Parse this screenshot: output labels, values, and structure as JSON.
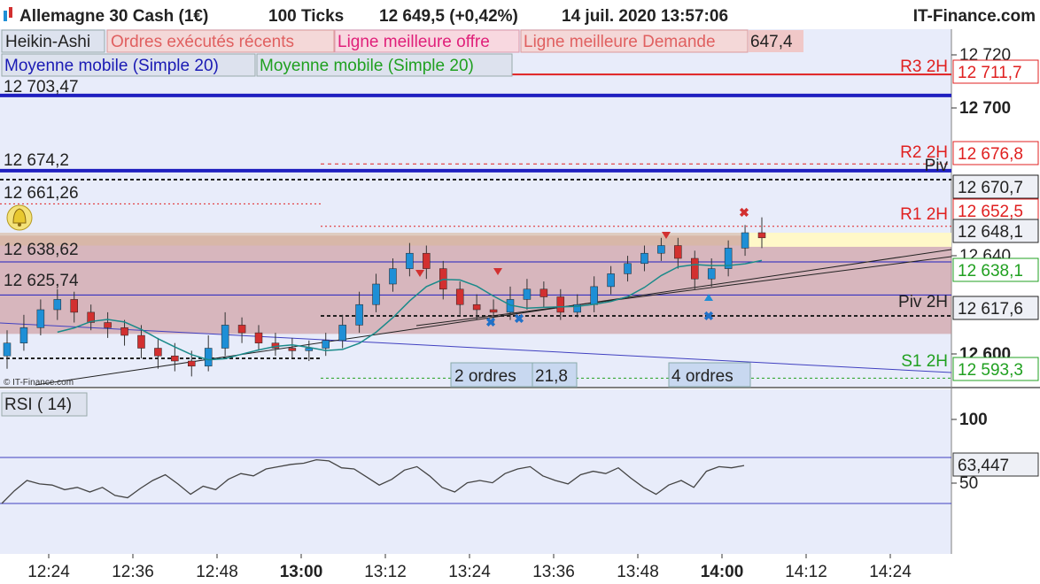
{
  "header": {
    "instrument": "Allemagne 30 Cash (1€)",
    "ticks": "100 Ticks",
    "price": "12 649,5 (+0,42%)",
    "datetime": "14 juil. 2020 13:57:06",
    "brand": "IT-Finance.com"
  },
  "legend": {
    "heikin": "Heikin-Ashi",
    "ordres": "Ordres exécutés récents",
    "offre": "Ligne meilleure offre",
    "demande": "Ligne meilleure Demande",
    "demande_value": "647,4",
    "ma1": "Moyenne mobile (Simple 20)",
    "ma2": "Moyenne mobile (Simple 20)"
  },
  "watermark": "© IT-Finance.com",
  "levels": {
    "r3": "R3 2H",
    "r2": "R2 2H",
    "r1": "R1 2H",
    "piv": "Piv 2H",
    "s1": "S1 2H",
    "piv_top": "Piv"
  },
  "left_labels": [
    "12 703,47",
    "12 674,2",
    "12 661,26",
    "12 638,62",
    "12 625,74"
  ],
  "order_boxes": {
    "box1": "2 ordres",
    "box1_tail": "21,8",
    "box2": "4 ordres"
  },
  "rsi_label": "RSI ( 14)",
  "rsi_value": "63,447",
  "colors": {
    "bull": "#1e8fd6",
    "bear": "#d23030",
    "ma_blue": "#1a1ab4",
    "ma_teal": "#1a8a8a",
    "red_line": "#e02020",
    "panel_bg": "#e8ecfa",
    "band": "#c98a8a",
    "yellow": "#fff8c8"
  },
  "chart_data": {
    "type": "candlestick",
    "instrument": "Allemagne 30 Cash (1€)",
    "x_ticks": [
      "12:24",
      "12:36",
      "12:48",
      "13:00",
      "13:12",
      "13:24",
      "13:36",
      "13:48",
      "14:00",
      "14:12",
      "14:24"
    ],
    "y_ticks": [
      "12 720",
      "12 700",
      "12 640",
      "12 600"
    ],
    "y_range": [
      12583,
      12733
    ],
    "price_tags": [
      {
        "text": "12 711,7",
        "color": "red"
      },
      {
        "text": "12 676,8",
        "color": "red"
      },
      {
        "text": "12 670,7",
        "color": "black"
      },
      {
        "text": "12 652,5",
        "color": "red"
      },
      {
        "text": "12 648,1",
        "color": "black"
      },
      {
        "text": "12 638,1",
        "color": "green"
      },
      {
        "text": "12 617,6",
        "color": "black"
      },
      {
        "text": "12 593,3",
        "color": "green"
      }
    ],
    "pivot_levels": [
      {
        "name": "R3 2H",
        "value": 12711.7
      },
      {
        "name": "R2 2H",
        "value": 12676.8
      },
      {
        "name": "R1 2H",
        "value": 12652.5
      },
      {
        "name": "Piv 2H",
        "value": 12617.6
      },
      {
        "name": "S1 2H",
        "value": 12593.3
      }
    ],
    "horizontal_lines": [
      12703.47,
      12674.2,
      12661.26,
      12638.62,
      12625.74
    ],
    "candles": [
      {
        "o": 12602,
        "c": 12607,
        "h": 12612,
        "l": 12597
      },
      {
        "o": 12607,
        "c": 12613,
        "h": 12618,
        "l": 12604
      },
      {
        "o": 12613,
        "c": 12620,
        "h": 12624,
        "l": 12610
      },
      {
        "o": 12620,
        "c": 12624,
        "h": 12628,
        "l": 12616
      },
      {
        "o": 12624,
        "c": 12619,
        "h": 12627,
        "l": 12615
      },
      {
        "o": 12619,
        "c": 12615,
        "h": 12622,
        "l": 12612
      },
      {
        "o": 12615,
        "c": 12613,
        "h": 12619,
        "l": 12609
      },
      {
        "o": 12613,
        "c": 12610,
        "h": 12616,
        "l": 12606
      },
      {
        "o": 12610,
        "c": 12605,
        "h": 12614,
        "l": 12601
      },
      {
        "o": 12605,
        "c": 12602,
        "h": 12609,
        "l": 12597
      },
      {
        "o": 12602,
        "c": 12600,
        "h": 12607,
        "l": 12596
      },
      {
        "o": 12600,
        "c": 12598,
        "h": 12604,
        "l": 12594
      },
      {
        "o": 12598,
        "c": 12605,
        "h": 12610,
        "l": 12596
      },
      {
        "o": 12605,
        "c": 12614,
        "h": 12619,
        "l": 12602
      },
      {
        "o": 12614,
        "c": 12611,
        "h": 12617,
        "l": 12607
      },
      {
        "o": 12611,
        "c": 12607,
        "h": 12614,
        "l": 12604
      },
      {
        "o": 12607,
        "c": 12605,
        "h": 12611,
        "l": 12602
      },
      {
        "o": 12605,
        "c": 12604,
        "h": 12609,
        "l": 12601
      },
      {
        "o": 12604,
        "c": 12605,
        "h": 12608,
        "l": 12600
      },
      {
        "o": 12605,
        "c": 12608,
        "h": 12611,
        "l": 12602
      },
      {
        "o": 12608,
        "c": 12614,
        "h": 12618,
        "l": 12605
      },
      {
        "o": 12614,
        "c": 12622,
        "h": 12627,
        "l": 12611
      },
      {
        "o": 12622,
        "c": 12630,
        "h": 12634,
        "l": 12619
      },
      {
        "o": 12630,
        "c": 12636,
        "h": 12640,
        "l": 12627
      },
      {
        "o": 12636,
        "c": 12642,
        "h": 12646,
        "l": 12633
      },
      {
        "o": 12642,
        "c": 12636,
        "h": 12645,
        "l": 12632
      },
      {
        "o": 12636,
        "c": 12628,
        "h": 12639,
        "l": 12624
      },
      {
        "o": 12628,
        "c": 12622,
        "h": 12631,
        "l": 12618
      },
      {
        "o": 12622,
        "c": 12620,
        "h": 12626,
        "l": 12616
      },
      {
        "o": 12620,
        "c": 12619,
        "h": 12624,
        "l": 12615
      },
      {
        "o": 12619,
        "c": 12624,
        "h": 12629,
        "l": 12616
      },
      {
        "o": 12624,
        "c": 12628,
        "h": 12632,
        "l": 12620
      },
      {
        "o": 12628,
        "c": 12625,
        "h": 12631,
        "l": 12621
      },
      {
        "o": 12625,
        "c": 12619,
        "h": 12628,
        "l": 12616
      },
      {
        "o": 12619,
        "c": 12622,
        "h": 12626,
        "l": 12617
      },
      {
        "o": 12622,
        "c": 12629,
        "h": 12633,
        "l": 12619
      },
      {
        "o": 12629,
        "c": 12634,
        "h": 12637,
        "l": 12626
      },
      {
        "o": 12634,
        "c": 12638,
        "h": 12641,
        "l": 12631
      },
      {
        "o": 12638,
        "c": 12642,
        "h": 12645,
        "l": 12635
      },
      {
        "o": 12642,
        "c": 12645,
        "h": 12648,
        "l": 12639
      },
      {
        "o": 12645,
        "c": 12640,
        "h": 12648,
        "l": 12636
      },
      {
        "o": 12640,
        "c": 12632,
        "h": 12643,
        "l": 12628
      },
      {
        "o": 12632,
        "c": 12636,
        "h": 12640,
        "l": 12629
      },
      {
        "o": 12636,
        "c": 12644,
        "h": 12647,
        "l": 12633
      },
      {
        "o": 12644,
        "c": 12650,
        "h": 12653,
        "l": 12641
      },
      {
        "o": 12650,
        "c": 12648,
        "h": 12656,
        "l": 12644
      }
    ],
    "rsi": {
      "label": "RSI ( 14)",
      "last": 63.447,
      "y_ticks": [
        "100",
        "50"
      ],
      "values": [
        30,
        41,
        50,
        47,
        46,
        42,
        44,
        40,
        44,
        37,
        35,
        43,
        50,
        55,
        47,
        38,
        45,
        42,
        51,
        56,
        54,
        60,
        62,
        64,
        65,
        68,
        67,
        61,
        60,
        53,
        46,
        51,
        59,
        62,
        54,
        44,
        40,
        48,
        50,
        48,
        56,
        60,
        62,
        54,
        50,
        47,
        55,
        58,
        56,
        61,
        52,
        44,
        38,
        46,
        50,
        44,
        58,
        62,
        61,
        63
      ]
    }
  }
}
